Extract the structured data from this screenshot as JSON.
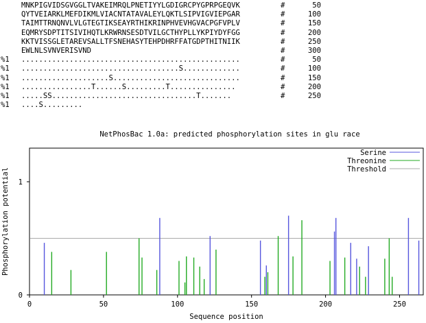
{
  "sequence": [
    {
      "prefix": "",
      "text": "MNKPIGVIDSGVGGLTVAKEIMRQLPNETIYYLGDIGRCPYGPRPGEQVK",
      "hash": "#",
      "num": "50"
    },
    {
      "prefix": "",
      "text": "QYTVEIARKLMEFDIKMLVIACNTATAVALEYLQKTLSIPVIGVIEPGAR",
      "hash": "#",
      "num": "100"
    },
    {
      "prefix": "",
      "text": "TAIMTTRNQNVLVLGTEGTIKSEAYRTHIKRINPHVEVHGVACPGFVPLV",
      "hash": "#",
      "num": "150"
    },
    {
      "prefix": "",
      "text": "EQMRYSDPTITSIVIHQTLKRWRNSESDTVILGCTHYPLLYKPIYDYFGG",
      "hash": "#",
      "num": "200"
    },
    {
      "prefix": "",
      "text": "KKTVISSGLETAREVSALLTFSNEHASYTEHPDHRFFATGDPTHITNIIK",
      "hash": "#",
      "num": "250"
    },
    {
      "prefix": "",
      "text": "EWLNLSVNVERISVND",
      "hash": "#",
      "num": "300"
    },
    {
      "prefix": "%1",
      "text": "..................................................",
      "hash": "#",
      "num": "50"
    },
    {
      "prefix": "%1",
      "text": "....................................S.............",
      "hash": "#",
      "num": "100"
    },
    {
      "prefix": "%1",
      "text": "....................S.............................",
      "hash": "#",
      "num": "150"
    },
    {
      "prefix": "%1",
      "text": "................T......S.........T...............",
      "hash": "#",
      "num": "200"
    },
    {
      "prefix": "%1",
      "text": ".....SS.................................T.......",
      "hash": "#",
      "num": "250"
    },
    {
      "prefix": "%1",
      "text": "....S.........",
      "hash": "",
      "num": ""
    }
  ],
  "chart_data": {
    "type": "bar",
    "title": "NetPhosBac 1.0a: predicted phosphorylation sites in glu race",
    "xlabel": "Sequence position",
    "ylabel": "Phosphorylation potential",
    "xlim": [
      0,
      266
    ],
    "ylim": [
      0,
      1.0
    ],
    "xticks": [
      "0",
      "50",
      "100",
      "150",
      "200",
      "250"
    ],
    "xtick_values": [
      0,
      50,
      100,
      150,
      200,
      250
    ],
    "yticks": [
      "0",
      "1"
    ],
    "ytick_values": [
      0,
      1
    ],
    "threshold": 0.5,
    "legend_position": "top-right",
    "colors": {
      "serine": "#5555dd",
      "threonine": "#22aa22",
      "threshold": "#aaaaaa"
    },
    "series": [
      {
        "name": "Serine",
        "x": [
          10,
          88,
          122,
          156,
          160,
          175,
          206,
          207,
          217,
          221,
          229,
          256,
          263
        ],
        "values": [
          0.46,
          0.68,
          0.52,
          0.48,
          0.26,
          0.7,
          0.56,
          0.68,
          0.46,
          0.32,
          0.43,
          0.68,
          0.48
        ]
      },
      {
        "name": "Threonine",
        "x": [
          15,
          28,
          52,
          74,
          76,
          86,
          101,
          105,
          106,
          111,
          115,
          118,
          126,
          159,
          161,
          168,
          178,
          184,
          203,
          213,
          223,
          227,
          240,
          243,
          245
        ],
        "values": [
          0.38,
          0.22,
          0.38,
          0.5,
          0.33,
          0.22,
          0.3,
          0.11,
          0.34,
          0.33,
          0.25,
          0.14,
          0.4,
          0.16,
          0.2,
          0.52,
          0.34,
          0.66,
          0.3,
          0.33,
          0.25,
          0.16,
          0.32,
          0.5,
          0.16
        ]
      },
      {
        "name": "Threshold",
        "values": [
          0.5
        ]
      }
    ]
  }
}
